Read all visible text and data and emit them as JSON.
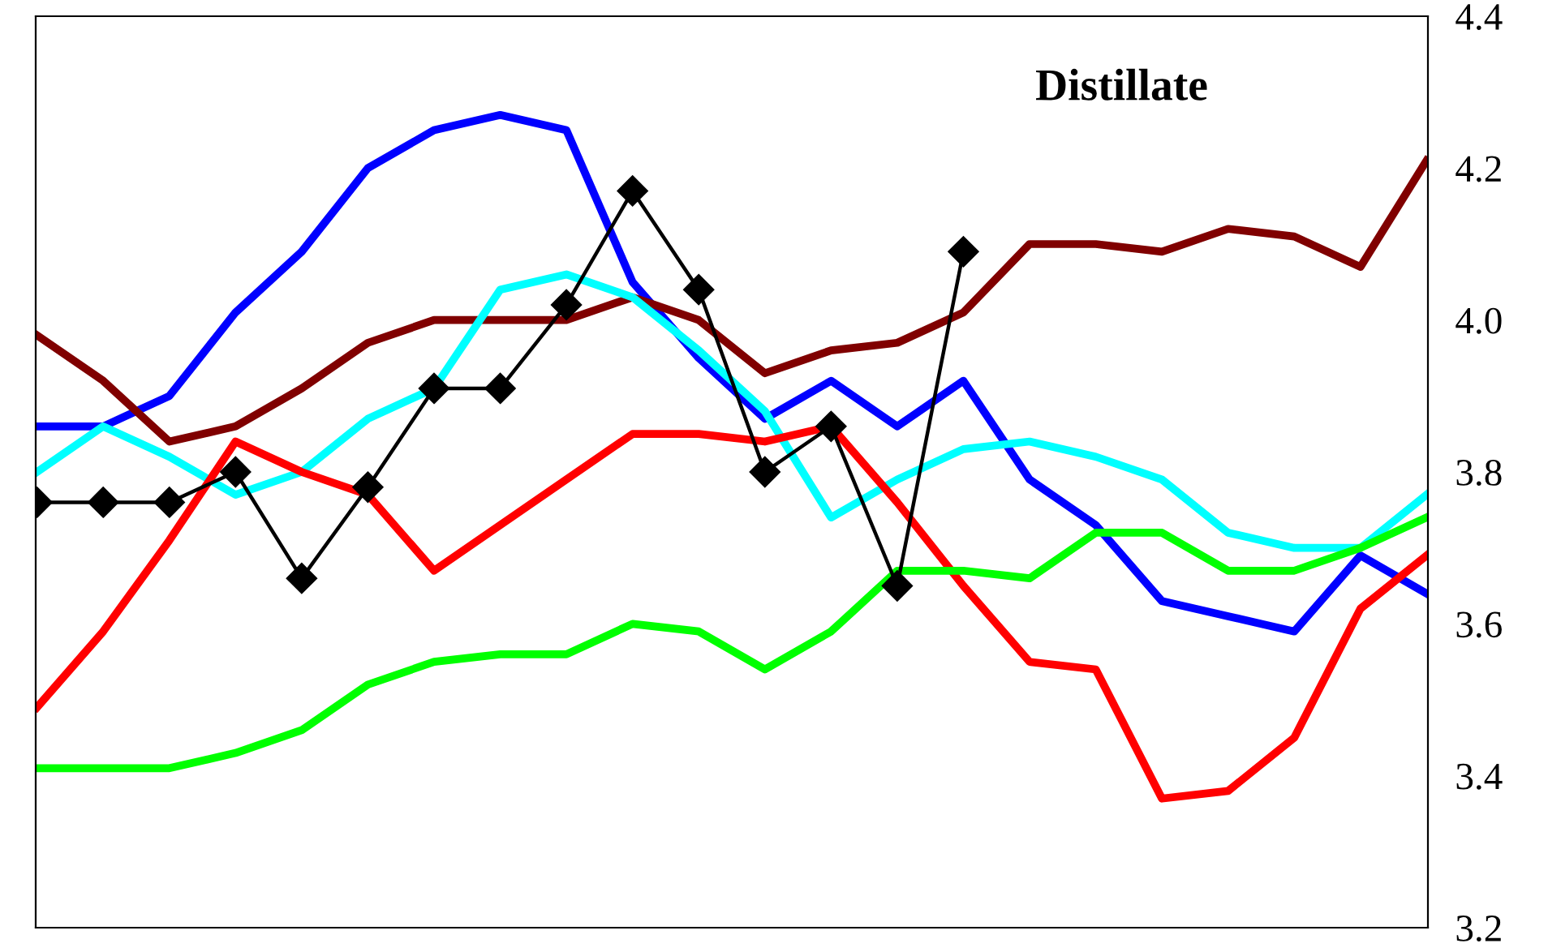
{
  "chart_data": {
    "type": "line",
    "title": "Distillate",
    "categories": [
      null,
      null,
      null,
      null,
      null,
      null,
      null,
      null,
      null,
      null,
      null,
      null,
      null,
      null,
      null,
      null,
      null,
      null,
      null,
      null,
      null,
      null
    ],
    "ylim": [
      3.2,
      4.4
    ],
    "yticks": [
      {
        "value": 3.2,
        "label": "3.2"
      },
      {
        "value": 3.4,
        "label": "3.4"
      },
      {
        "value": 3.6,
        "label": "3.6"
      },
      {
        "value": 3.8,
        "label": "3.8"
      },
      {
        "value": 4.0,
        "label": "4.0"
      },
      {
        "value": 4.2,
        "label": "4.2"
      },
      {
        "value": 4.4,
        "label": "4.4"
      }
    ],
    "tick_labels": "y",
    "grid": false,
    "legend": false,
    "marker": "none",
    "series": [
      {
        "color": "#0000ff",
        "values": [
          3.86,
          3.86,
          3.9,
          4.01,
          4.09,
          4.2,
          4.25,
          4.27,
          4.25,
          4.05,
          3.95,
          3.87,
          3.92,
          3.86,
          3.92,
          3.79,
          3.73,
          3.63,
          3.61,
          3.59,
          3.69,
          3.64
        ]
      },
      {
        "color": "#800000",
        "values": [
          3.98,
          3.92,
          3.84,
          3.86,
          3.91,
          3.97,
          4.0,
          4.0,
          4.0,
          4.03,
          4.0,
          3.93,
          3.96,
          3.97,
          4.01,
          4.1,
          4.1,
          4.09,
          4.12,
          4.11,
          4.07,
          4.21
        ]
      },
      {
        "color": "#00ffff",
        "values": [
          3.8,
          3.86,
          3.82,
          3.77,
          3.8,
          3.87,
          3.91,
          4.04,
          4.06,
          4.03,
          3.96,
          3.88,
          3.74,
          3.79,
          3.83,
          3.84,
          3.82,
          3.79,
          3.72,
          3.7,
          3.7,
          3.77
        ]
      },
      {
        "color": "#ff0000",
        "values": [
          3.49,
          3.59,
          3.71,
          3.84,
          3.8,
          3.77,
          3.67,
          3.73,
          3.79,
          3.85,
          3.85,
          3.84,
          3.86,
          3.76,
          3.65,
          3.55,
          3.54,
          3.37,
          3.38,
          3.45,
          3.62,
          3.69
        ]
      },
      {
        "color": "#00ff00",
        "values": [
          3.41,
          3.41,
          3.41,
          3.43,
          3.46,
          3.52,
          3.55,
          3.56,
          3.56,
          3.6,
          3.59,
          3.54,
          3.59,
          3.67,
          3.67,
          3.66,
          3.72,
          3.72,
          3.67,
          3.67,
          3.7,
          3.74
        ]
      },
      {
        "color": "#000000",
        "marker": "diamond",
        "values": [
          3.76,
          3.76,
          3.76,
          3.8,
          3.66,
          3.78,
          3.91,
          3.91,
          4.02,
          4.17,
          4.04,
          3.8,
          3.86,
          3.65,
          4.09,
          null,
          null,
          null,
          null,
          null,
          null,
          null
        ]
      }
    ]
  }
}
